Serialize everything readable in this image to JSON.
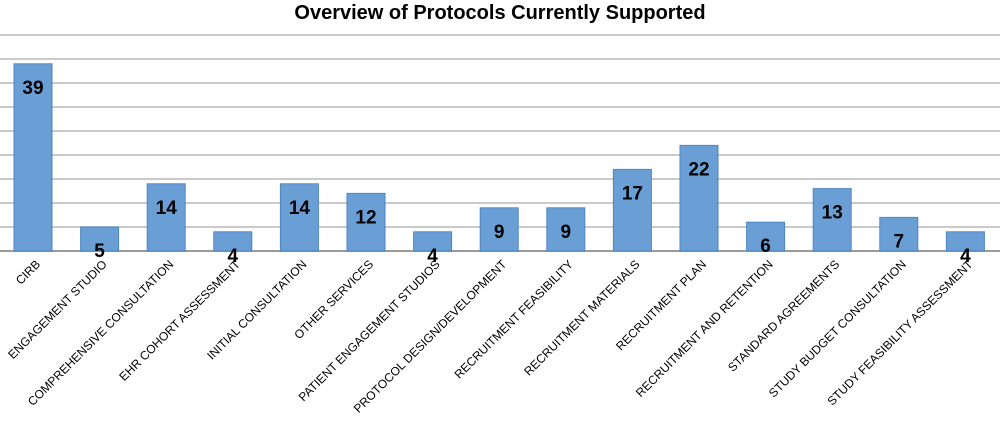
{
  "chart_data": {
    "type": "bar",
    "title": "Overview of Protocols Currently Supported",
    "categories": [
      "CIRB",
      "ENGAGEMENT STUDIO",
      "COMPREHENSIVE CONSULTATION",
      "EHR COHORT ASSESSMENT",
      "INITIAL CONSULTATION",
      "OTHER SERVICES",
      "PATIENT ENGAGEMENT STUDIOS",
      "PROTOCOL DESIGN/DEVELOPMENT",
      "RECRUITMENT FEASIBILITY",
      "RECRUITMENT MATERIALS",
      "RECRUITMENT PLAN",
      "RECRUITMENT AND RETENTION",
      "STANDARD AGREEMENTS",
      "STUDY BUDGET CONSULTATION",
      "STUDY FEASIBILITY ASSESSMENT"
    ],
    "values": [
      39,
      5,
      14,
      4,
      14,
      12,
      4,
      9,
      9,
      17,
      22,
      6,
      13,
      7,
      4
    ],
    "ylim": [
      0,
      45
    ],
    "grid": true,
    "bar_color": "#6a9fd6",
    "data_labels_inside": true
  }
}
